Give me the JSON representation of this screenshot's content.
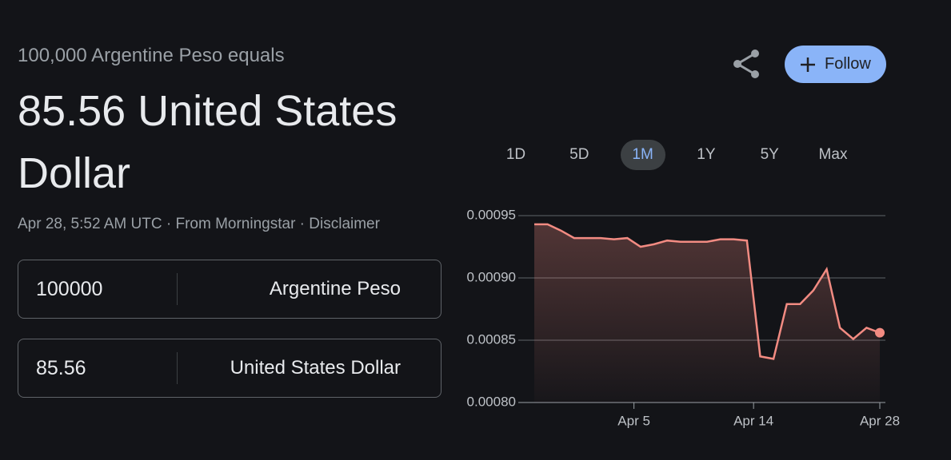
{
  "header": {
    "subtitle": "100,000 Argentine Peso equals",
    "title": "85.56 United States Dollar",
    "timestamp": "Apr 28, 5:52 AM UTC",
    "source": "From Morningstar",
    "disclaimer": "Disclaimer"
  },
  "converter": [
    {
      "amount": "100000",
      "currency": "Argentine Peso"
    },
    {
      "amount": "85.56",
      "currency": "United States Dollar"
    }
  ],
  "follow_button": "Follow",
  "ranges": [
    "1D",
    "5D",
    "1M",
    "1Y",
    "5Y",
    "Max"
  ],
  "selected_range": 2,
  "chart_data": {
    "type": "line",
    "color": "#f28b82",
    "x": [
      0,
      1,
      2,
      3,
      4,
      5,
      6,
      7,
      8,
      9,
      10,
      11,
      12,
      13,
      14,
      15,
      16,
      17,
      18,
      19,
      20,
      21,
      22,
      23,
      24,
      25,
      26
    ],
    "values": [
      0.000943,
      0.000943,
      0.000938,
      0.000932,
      0.000932,
      0.000932,
      0.000931,
      0.000932,
      0.000925,
      0.000927,
      0.00093,
      0.000929,
      0.000929,
      0.000929,
      0.000931,
      0.000931,
      0.00093,
      0.000837,
      0.000835,
      0.000879,
      0.000879,
      0.00089,
      0.000907,
      0.00086,
      0.000851,
      0.00086,
      0.000856
    ],
    "xlim": [
      0,
      26
    ],
    "xticks": [
      {
        "value": 7.5,
        "label": "Apr 5"
      },
      {
        "value": 16.5,
        "label": "Apr 14"
      },
      {
        "value": 26,
        "label": "Apr 28"
      }
    ],
    "ylim": [
      0.0008,
      0.00095
    ],
    "yticks": [
      {
        "value": 0.0008,
        "label": "0.00080"
      },
      0.00085,
      {
        "value": 0.0009,
        "label": "0.00090"
      },
      0.00095
    ],
    "grid": true
  }
}
